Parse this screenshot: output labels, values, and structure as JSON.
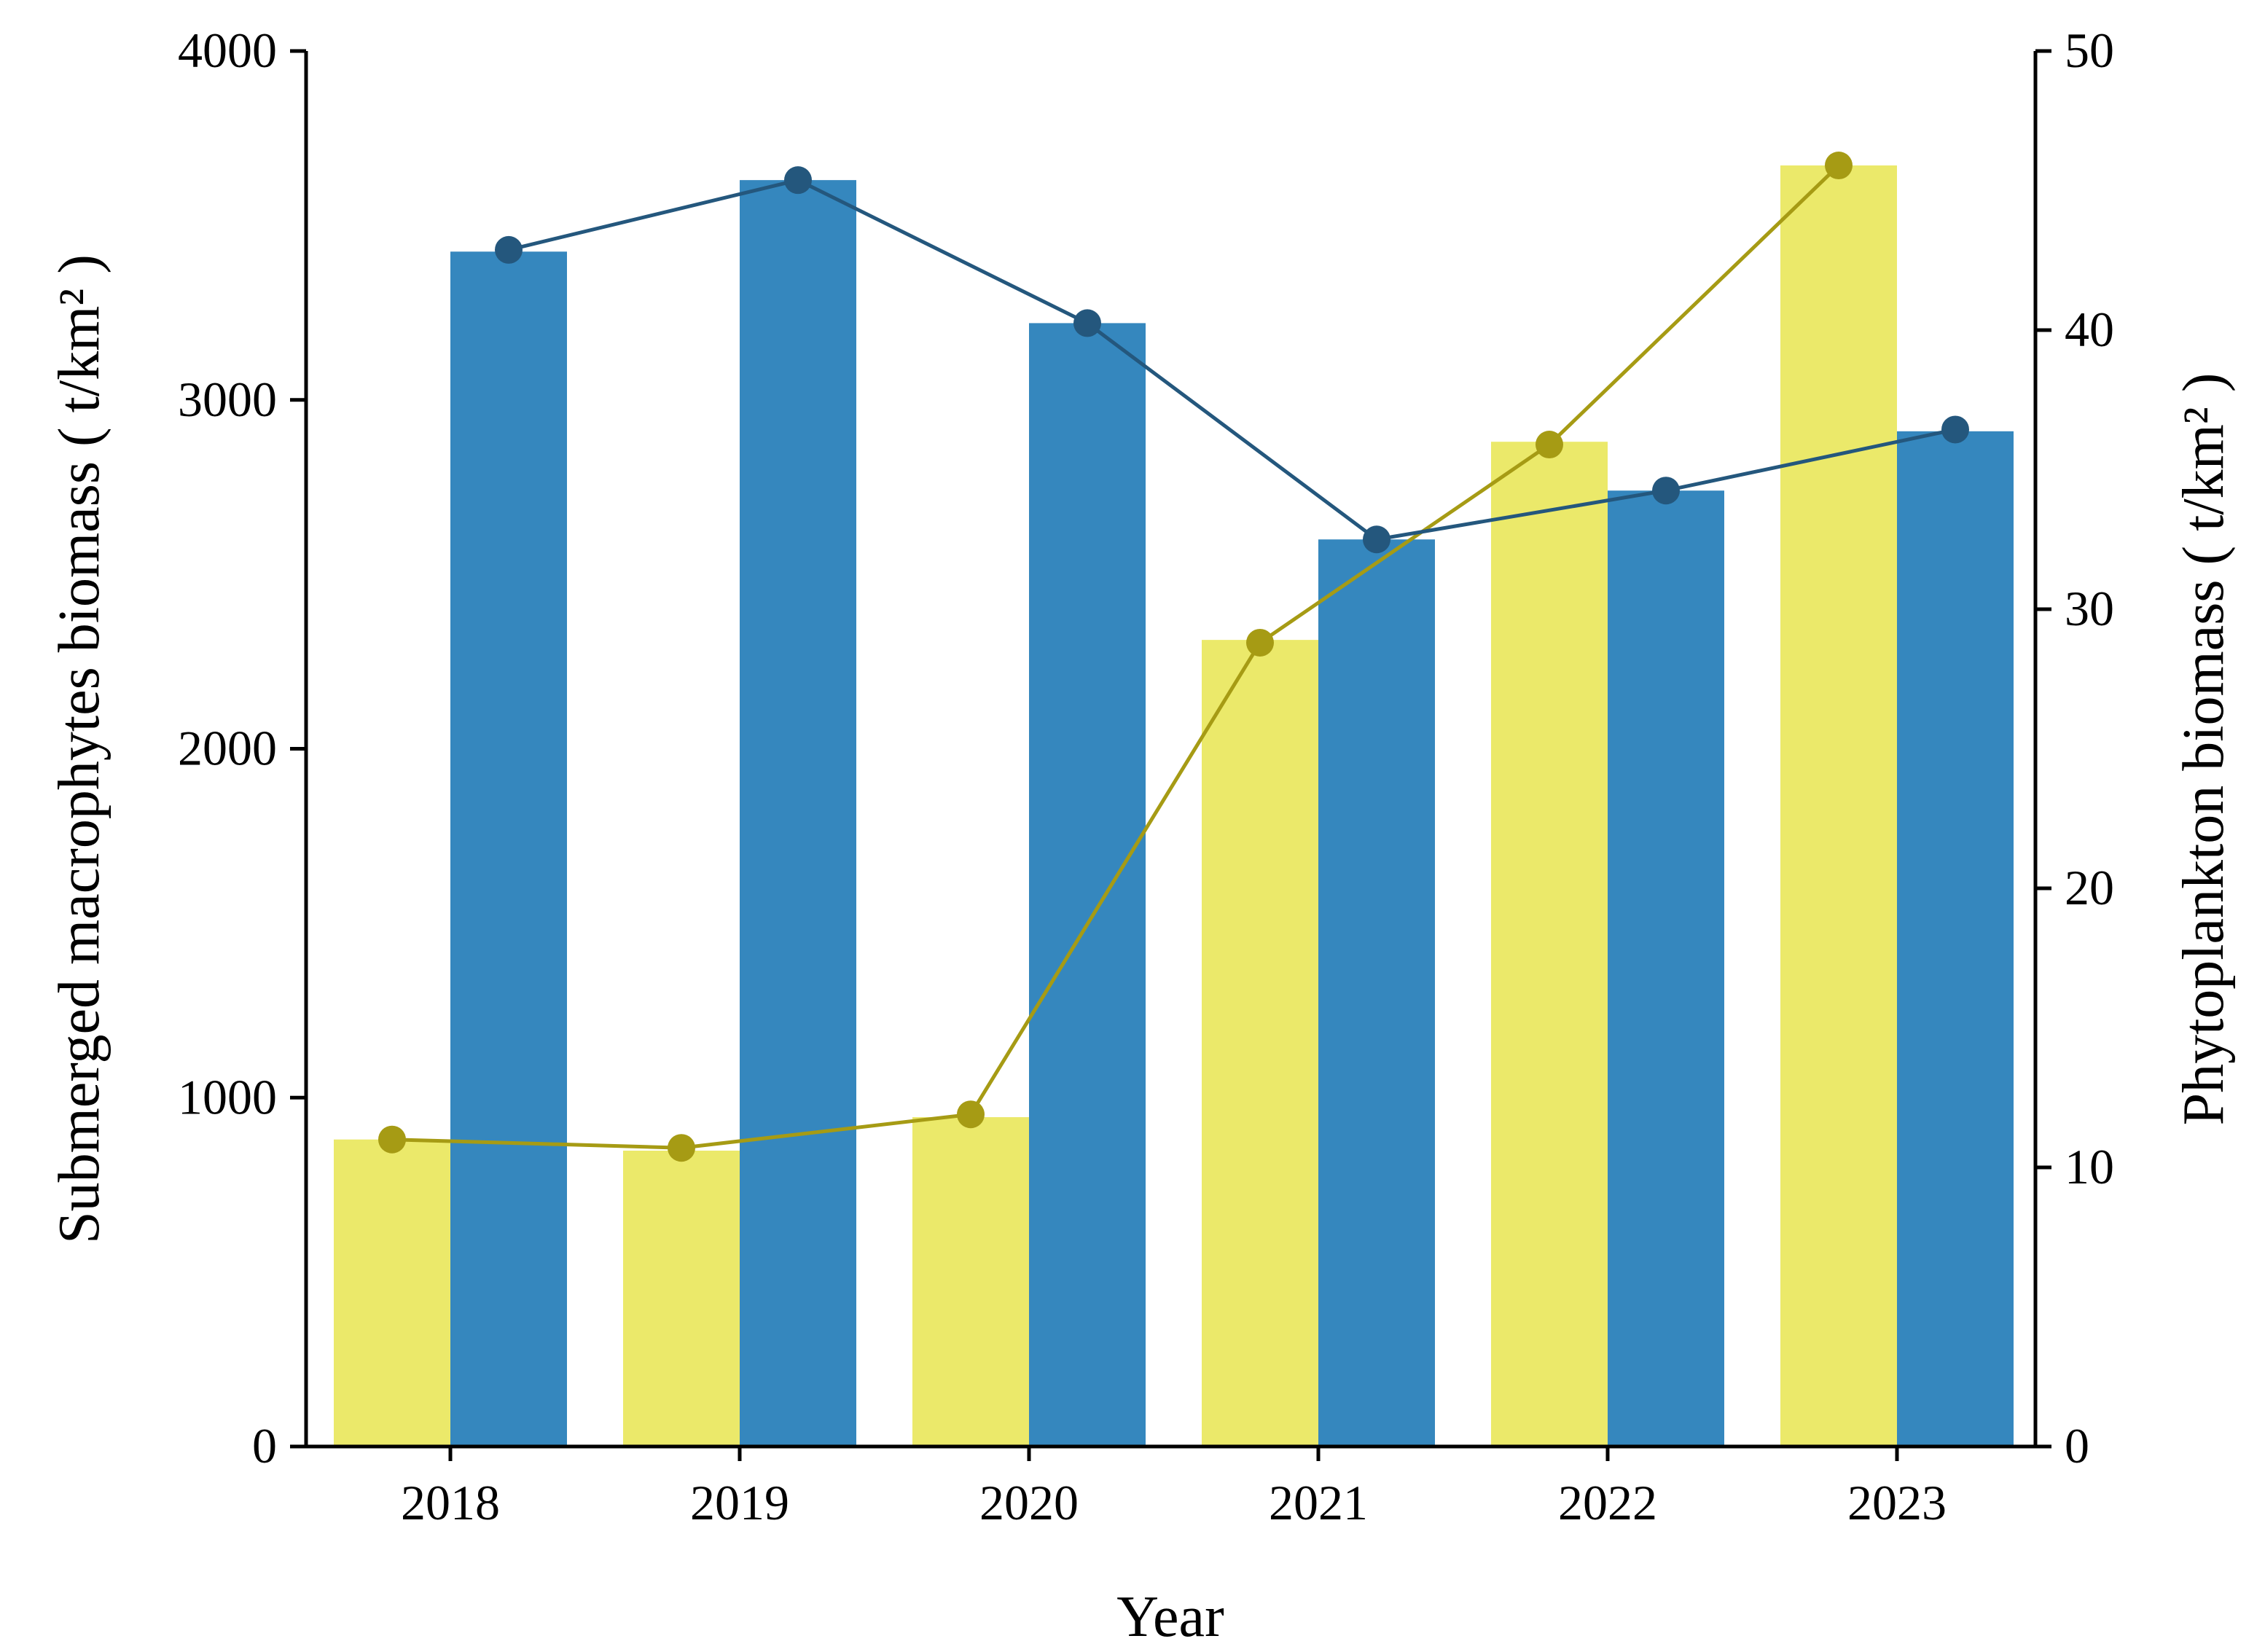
{
  "chart_data": {
    "type": "bar",
    "title": "",
    "xlabel": "Year",
    "ylabel": "Submerged macrophytes biomass ( t/km² )",
    "ylabel_right": "Phytoplankton biomass ( t/km² )",
    "categories": [
      "2018",
      "2019",
      "2020",
      "2021",
      "2022",
      "2023"
    ],
    "ylim": [
      0,
      4000
    ],
    "ylim_right": [
      0,
      50
    ],
    "yticks": [
      "0",
      "1000",
      "2000",
      "3000",
      "4000"
    ],
    "yticks_right": [
      "0",
      "10",
      "20",
      "30",
      "40",
      "50"
    ],
    "grid": false,
    "legend": "none",
    "series": [
      {
        "axis": "right",
        "bar_values": [
          11.0,
          10.6,
          11.8,
          28.9,
          36.0,
          45.9
        ],
        "line_values": [
          11.0,
          10.7,
          11.9,
          28.8,
          35.9,
          45.9
        ],
        "bar_color": "#ebe96a",
        "line_color": "#a69b14"
      },
      {
        "axis": "left",
        "bar_values": [
          3425,
          3630,
          3220,
          2600,
          2740,
          2910
        ],
        "line_values": [
          3430,
          3630,
          3220,
          2600,
          2740,
          2915
        ],
        "bar_color": "#3587be",
        "line_color": "#24577d"
      }
    ]
  }
}
